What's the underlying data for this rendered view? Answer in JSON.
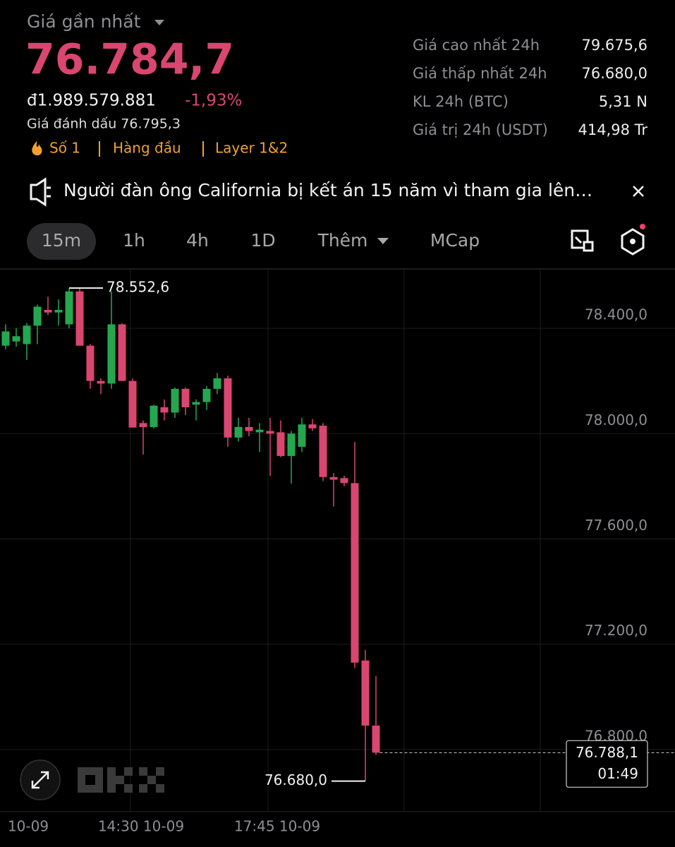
{
  "header": {
    "label": "Giá gần nhất",
    "price": "76.784,7",
    "fiat_price": "đ1.989.579.881",
    "change": "-1,93%",
    "mark_price": "Giá đánh dấu 76.795,3",
    "tags": [
      "Số 1",
      "Hàng đầu",
      "Layer 1&2"
    ]
  },
  "stats": {
    "rows": [
      [
        "Giá cao nhất 24h",
        "79.675,6"
      ],
      [
        "Giá thấp nhất 24h",
        "76.680,0"
      ],
      [
        "KL 24h (BTC)",
        "5,31 N"
      ],
      [
        "Giá trị 24h (USDT)",
        "414,98 Tr"
      ]
    ]
  },
  "news": {
    "text": "Người đàn ông California bị kết án 15 năm vì tham gia lên…"
  },
  "tabs": [
    "15m",
    "1h",
    "4h",
    "1D",
    "Thêm",
    "MCap"
  ],
  "chart_data": {
    "type": "candlestick",
    "ylim": [
      76563.8,
      78622.8
    ],
    "yticks": [
      {
        "value": 78400,
        "label": "78.400,0"
      },
      {
        "value": 78000,
        "label": "78.000,0"
      },
      {
        "value": 77600,
        "label": "77.600,0"
      },
      {
        "value": 77200,
        "label": "77.200,0"
      },
      {
        "value": 76800,
        "label": "76.800,0"
      }
    ],
    "x_labels": [
      "10-09",
      "14:30 10-09",
      "17:45 10-09"
    ],
    "up_color": "#25a750",
    "down_color": "#d9466f",
    "open": [
      78334,
      78350,
      78340,
      78410,
      78470,
      78460,
      78415,
      78540,
      78334,
      78200,
      78190,
      78415,
      78200,
      78040,
      78025,
      78100,
      78080,
      78170,
      78110,
      78120,
      78170,
      78210,
      77985,
      78025,
      78005,
      78010,
      78005,
      77915,
      77950,
      78035,
      78030,
      77835,
      77831,
      77812,
      77138,
      76891
    ],
    "high": [
      78415,
      78400,
      78420,
      78490,
      78520,
      78510,
      78552.6,
      78550,
      78340,
      78210,
      78540,
      78420,
      78210,
      78050,
      78110,
      78130,
      78175,
      78175,
      78130,
      78180,
      78230,
      78220,
      78060,
      78060,
      78040,
      78060,
      78050,
      78010,
      78060,
      78055,
      78040,
      77850,
      77840,
      77968,
      77178,
      77079
    ],
    "low": [
      78320,
      78330,
      78280,
      78340,
      78450,
      78410,
      78400,
      78350,
      78170,
      78150,
      78170,
      78200,
      78023,
      77920,
      78020,
      78050,
      78060,
      78070,
      78050,
      78090,
      78150,
      77950,
      77970,
      77990,
      77930,
      77840,
      77910,
      77810,
      77930,
      78010,
      77820,
      77723,
      77800,
      77110,
      76680,
      76780
    ],
    "close": [
      78388,
      78370,
      78410,
      78482,
      78460,
      78470,
      78540,
      78334,
      78200,
      78190,
      78415,
      78200,
      78023,
      78025,
      78106,
      78080,
      78170,
      78100,
      78120,
      78170,
      78210,
      77985,
      78025,
      78010,
      78015,
      78000,
      77915,
      78000,
      78035,
      78020,
      77835,
      77825,
      77812,
      77130,
      76891,
      76788.1
    ],
    "high_marker": {
      "value": 78552.6,
      "label": "78.552,6"
    },
    "low_marker": {
      "value": 76680,
      "label": "76.680,0"
    },
    "last_price": {
      "value": 76788.1,
      "label": "76.788,1"
    },
    "countdown": "01:49"
  }
}
